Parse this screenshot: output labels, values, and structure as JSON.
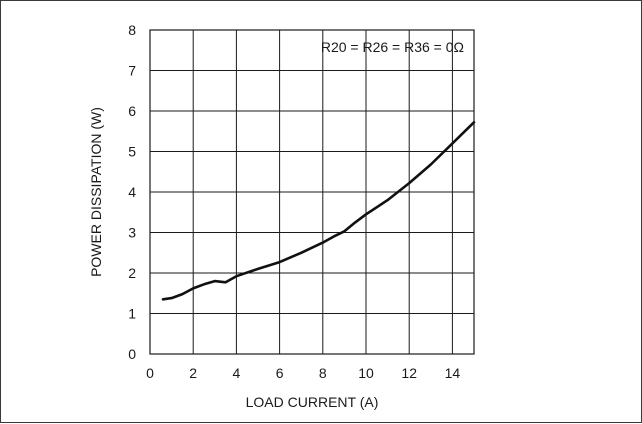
{
  "chart_data": {
    "type": "line",
    "title": "",
    "xlabel": "LOAD CURRENT (A)",
    "ylabel": "POWER DISSIPATION (W)",
    "annotation": "R20 = R26 = R36 = 0Ω",
    "xlim": [
      0,
      15
    ],
    "ylim": [
      0,
      8
    ],
    "xticks": [
      0,
      2,
      4,
      6,
      8,
      10,
      12,
      14
    ],
    "yticks": [
      0,
      1,
      2,
      3,
      4,
      5,
      6,
      7,
      8
    ],
    "grid": true,
    "series": [
      {
        "x": [
          0.6,
          1.0,
          1.5,
          2.0,
          2.5,
          3.0,
          3.5,
          4.0,
          5.0,
          6.0,
          7.0,
          8.0,
          8.5,
          9.0,
          9.5,
          10.0,
          11.0,
          12.0,
          13.0,
          14.0,
          15.0
        ],
        "y": [
          1.35,
          1.38,
          1.48,
          1.62,
          1.72,
          1.8,
          1.77,
          1.92,
          2.1,
          2.27,
          2.5,
          2.75,
          2.9,
          3.03,
          3.25,
          3.45,
          3.8,
          4.22,
          4.68,
          5.2,
          5.72
        ],
        "color": "#111111"
      }
    ]
  }
}
